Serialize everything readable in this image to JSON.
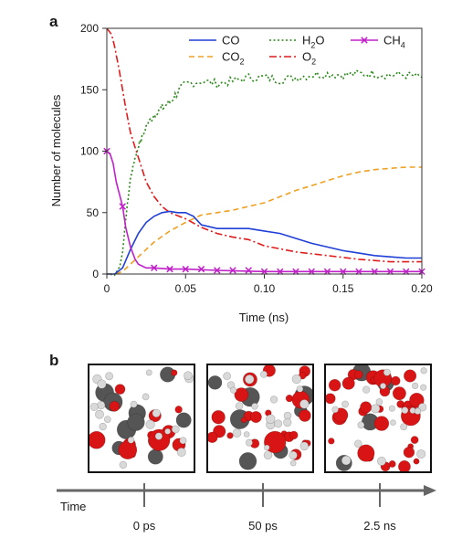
{
  "panel_a_label": "a",
  "panel_b_label": "b",
  "colors": {
    "CO": "#1f3fd6",
    "CO2": "#f0a020",
    "H2O": "#2a8a1a",
    "O2": "#e01b1b",
    "CH4": "#c020c8",
    "carbon": "#555555",
    "oxygen": "#d91414",
    "hydrogen": "#d9d9d9"
  },
  "chart_data": {
    "type": "line",
    "title": "",
    "xlabel": "Time (ns)",
    "ylabel": "Number of molecules",
    "xlim": [
      0,
      0.2
    ],
    "ylim": [
      0,
      200
    ],
    "xticks": [
      0,
      0.05,
      0.1,
      0.15,
      0.2
    ],
    "xtick_labels": [
      "0",
      "0.05",
      "0.10",
      "0.15",
      "0.20"
    ],
    "yticks": [
      0,
      50,
      100,
      150,
      200
    ],
    "ytick_labels": [
      "0",
      "50",
      "100",
      "150",
      "200"
    ],
    "grid": false,
    "legend_position": "top-right",
    "series": [
      {
        "name": "CO",
        "key": "CO",
        "style": "solid",
        "x": [
          0,
          0.005,
          0.01,
          0.015,
          0.02,
          0.025,
          0.03,
          0.035,
          0.04,
          0.045,
          0.05,
          0.055,
          0.06,
          0.07,
          0.08,
          0.09,
          0.1,
          0.11,
          0.12,
          0.13,
          0.14,
          0.15,
          0.16,
          0.17,
          0.18,
          0.19,
          0.2
        ],
        "y": [
          0,
          0,
          5,
          20,
          33,
          42,
          47,
          50,
          51,
          50,
          50,
          47,
          40,
          37,
          37,
          37,
          35,
          33,
          29,
          25,
          22,
          19,
          17,
          15,
          14,
          13,
          13
        ]
      },
      {
        "name": "CO",
        "sub": "2",
        "key": "CO2",
        "style": "dashed",
        "x": [
          0,
          0.005,
          0.01,
          0.015,
          0.02,
          0.025,
          0.03,
          0.04,
          0.05,
          0.06,
          0.07,
          0.08,
          0.09,
          0.1,
          0.11,
          0.12,
          0.13,
          0.14,
          0.15,
          0.16,
          0.17,
          0.18,
          0.19,
          0.2
        ],
        "y": [
          0,
          0,
          2,
          8,
          14,
          20,
          26,
          35,
          42,
          48,
          50,
          52,
          55,
          58,
          63,
          68,
          72,
          76,
          80,
          83,
          85,
          86,
          87,
          87
        ]
      },
      {
        "name": "H",
        "sub": "2",
        "suffix": "O",
        "key": "H2O",
        "style": "dotted",
        "x": [
          0,
          0.005,
          0.008,
          0.01,
          0.012,
          0.015,
          0.018,
          0.02,
          0.025,
          0.03,
          0.035,
          0.04,
          0.045,
          0.05,
          0.06,
          0.07,
          0.08,
          0.09,
          0.1,
          0.11,
          0.12,
          0.13,
          0.14,
          0.15,
          0.16,
          0.17,
          0.18,
          0.19,
          0.2
        ],
        "y": [
          0,
          0,
          5,
          18,
          45,
          78,
          95,
          103,
          120,
          130,
          135,
          140,
          148,
          155,
          157,
          155,
          157,
          160,
          160,
          158,
          160,
          162,
          163,
          162,
          163,
          163,
          162,
          162,
          160
        ]
      },
      {
        "name": "O",
        "sub": "2",
        "key": "O2",
        "style": "dashdot",
        "x": [
          0,
          0.003,
          0.005,
          0.008,
          0.01,
          0.012,
          0.015,
          0.018,
          0.02,
          0.025,
          0.03,
          0.035,
          0.04,
          0.05,
          0.06,
          0.07,
          0.08,
          0.09,
          0.1,
          0.12,
          0.14,
          0.16,
          0.18,
          0.2
        ],
        "y": [
          200,
          195,
          185,
          165,
          150,
          135,
          115,
          103,
          95,
          75,
          63,
          55,
          50,
          45,
          38,
          33,
          30,
          28,
          23,
          18,
          15,
          12,
          10,
          10
        ]
      },
      {
        "name": "CH",
        "sub": "4",
        "key": "CH4",
        "style": "solid",
        "marker": "x",
        "x": [
          0,
          0.002,
          0.004,
          0.006,
          0.008,
          0.01,
          0.012,
          0.015,
          0.018,
          0.02,
          0.025,
          0.03,
          0.04,
          0.05,
          0.07,
          0.1,
          0.15,
          0.2
        ],
        "y": [
          100,
          98,
          90,
          75,
          65,
          55,
          38,
          22,
          12,
          8,
          5,
          5,
          4,
          4,
          3,
          2,
          2,
          2
        ],
        "marker_x": [
          0,
          0.01,
          0.03,
          0.04,
          0.05,
          0.06,
          0.07,
          0.08,
          0.09,
          0.1,
          0.11,
          0.12,
          0.13,
          0.14,
          0.15,
          0.16,
          0.17,
          0.18,
          0.19,
          0.2
        ],
        "marker_y": [
          100,
          55,
          5,
          4,
          4,
          4,
          3,
          3,
          3,
          2,
          2,
          2,
          2,
          2,
          2,
          2,
          2,
          2,
          2,
          2
        ]
      }
    ]
  },
  "timeline": {
    "label": "Time",
    "ticks": [
      "0 ps",
      "50 ps",
      "2.5 ns"
    ]
  },
  "snapshots": [
    {
      "name": "snapshot-0ps",
      "time": "0 ps"
    },
    {
      "name": "snapshot-50ps",
      "time": "50 ps"
    },
    {
      "name": "snapshot-2p5ns",
      "time": "2.5 ns"
    }
  ]
}
